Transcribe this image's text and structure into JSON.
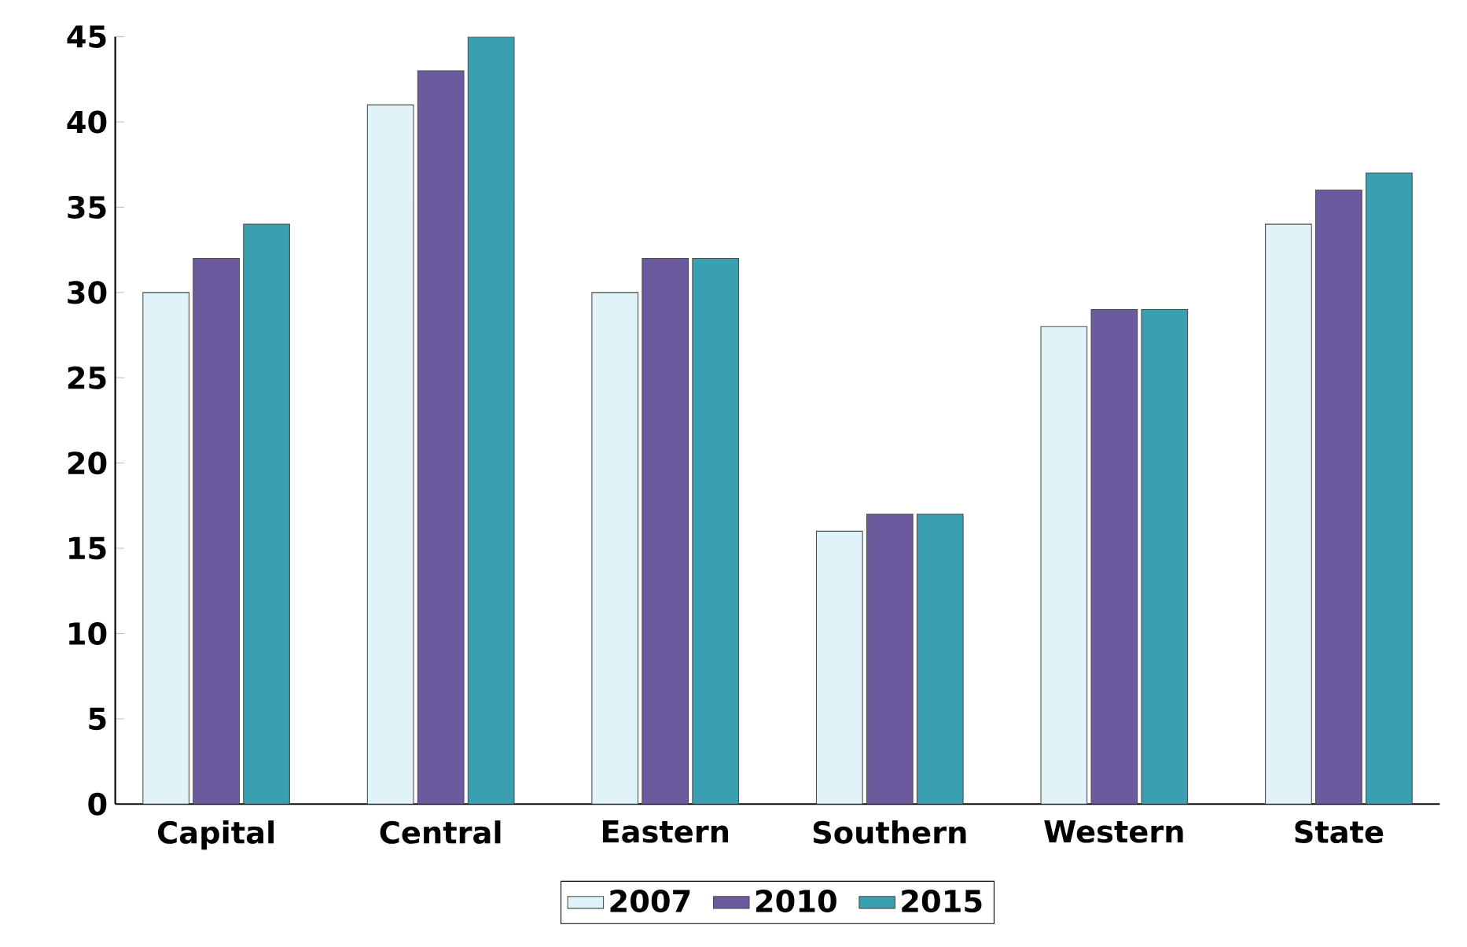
{
  "chart_data": {
    "type": "bar",
    "categories": [
      "Capital",
      "Central",
      "Eastern",
      "Southern",
      "Western",
      "State"
    ],
    "series": [
      {
        "name": "2007",
        "color": "#dff3f8",
        "values": [
          30,
          41,
          30,
          16,
          28,
          34
        ]
      },
      {
        "name": "2010",
        "color": "#6b5b9e",
        "values": [
          32,
          43,
          32,
          17,
          29,
          36
        ]
      },
      {
        "name": "2015",
        "color": "#3a9fb0",
        "values": [
          34,
          45,
          32,
          17,
          29,
          37
        ]
      }
    ],
    "ylim": [
      0,
      45
    ],
    "yticks": [
      0,
      5,
      10,
      15,
      20,
      25,
      30,
      35,
      40,
      45
    ],
    "grid": false,
    "legend": "bottom"
  }
}
